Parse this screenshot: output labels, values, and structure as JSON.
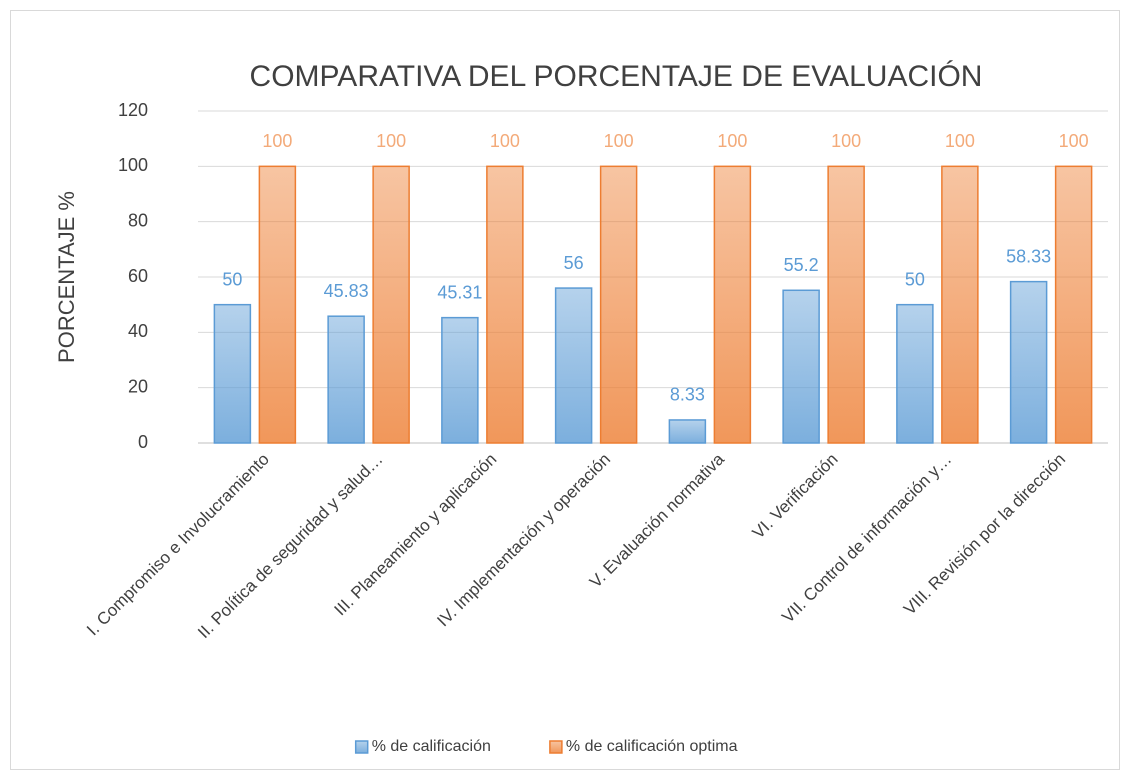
{
  "chart_data": {
    "type": "bar",
    "title": "COMPARATIVA DEL PORCENTAJE DE EVALUACIÓN",
    "y_label": "PORCENTAJE %",
    "categories": [
      "I. Compromiso e Involucramiento",
      "II. Política de seguridad y salud…",
      "III. Planeamiento y aplicación",
      "IV. Implementación y operación",
      "V. Evaluación normativa",
      "VI. Verificación",
      "VII. Control de información y…",
      "VIII. Revisión por la dirección"
    ],
    "series": [
      {
        "name": "% de calificación",
        "color": "#5b9bd5",
        "values": [
          50,
          45.83,
          45.31,
          56,
          8.33,
          55.2,
          50,
          58.33
        ]
      },
      {
        "name": "% de calificación optima",
        "color": "#ed7d31",
        "values": [
          100,
          100,
          100,
          100,
          100,
          100,
          100,
          100
        ]
      }
    ],
    "ylim": [
      0,
      120
    ],
    "yticks": [
      0,
      20,
      40,
      60,
      80,
      100,
      120
    ],
    "grid": true,
    "legend": "bottom"
  }
}
